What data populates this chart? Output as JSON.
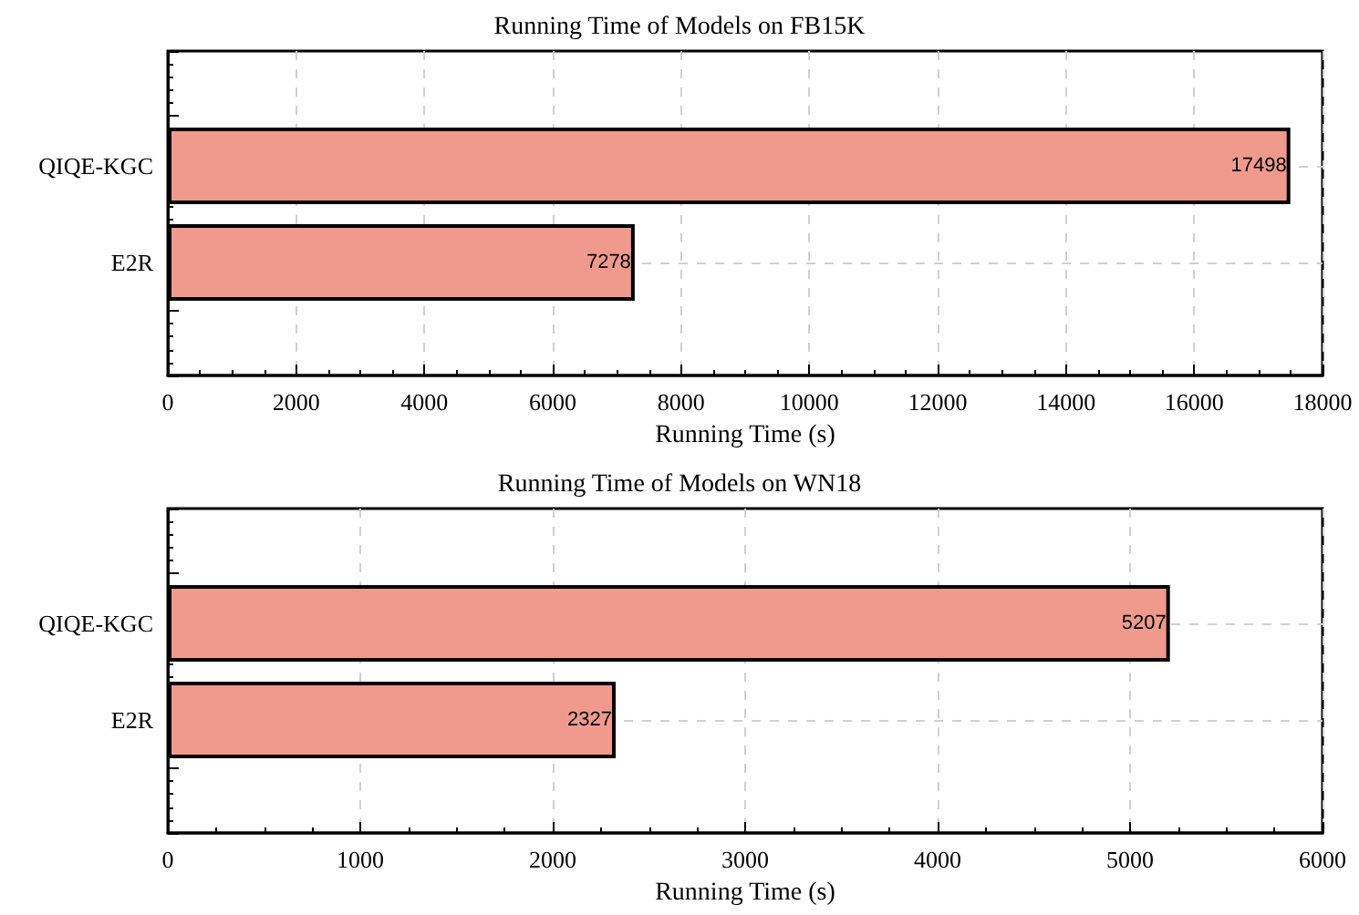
{
  "chart_data": [
    {
      "type": "bar",
      "orientation": "horizontal",
      "title": "Running Time of Models on FB15K",
      "xlabel": "Running Time (s)",
      "categories": [
        "QIQE-KGC",
        "E2R"
      ],
      "values": [
        17498,
        7278
      ],
      "color": "#f09a8e",
      "xlim": [
        0,
        18000
      ],
      "xticks": [
        0,
        2000,
        4000,
        6000,
        8000,
        10000,
        12000,
        14000,
        16000,
        18000
      ],
      "grid": true,
      "data_labels": true
    },
    {
      "type": "bar",
      "orientation": "horizontal",
      "title": "Running Time of Models on WN18",
      "xlabel": "Running Time (s)",
      "categories": [
        "QIQE-KGC",
        "E2R"
      ],
      "values": [
        5207,
        2327
      ],
      "color": "#f09a8e",
      "xlim": [
        0,
        6000
      ],
      "xticks": [
        0,
        1000,
        2000,
        3000,
        4000,
        5000,
        6000
      ],
      "grid": true,
      "data_labels": true
    }
  ]
}
